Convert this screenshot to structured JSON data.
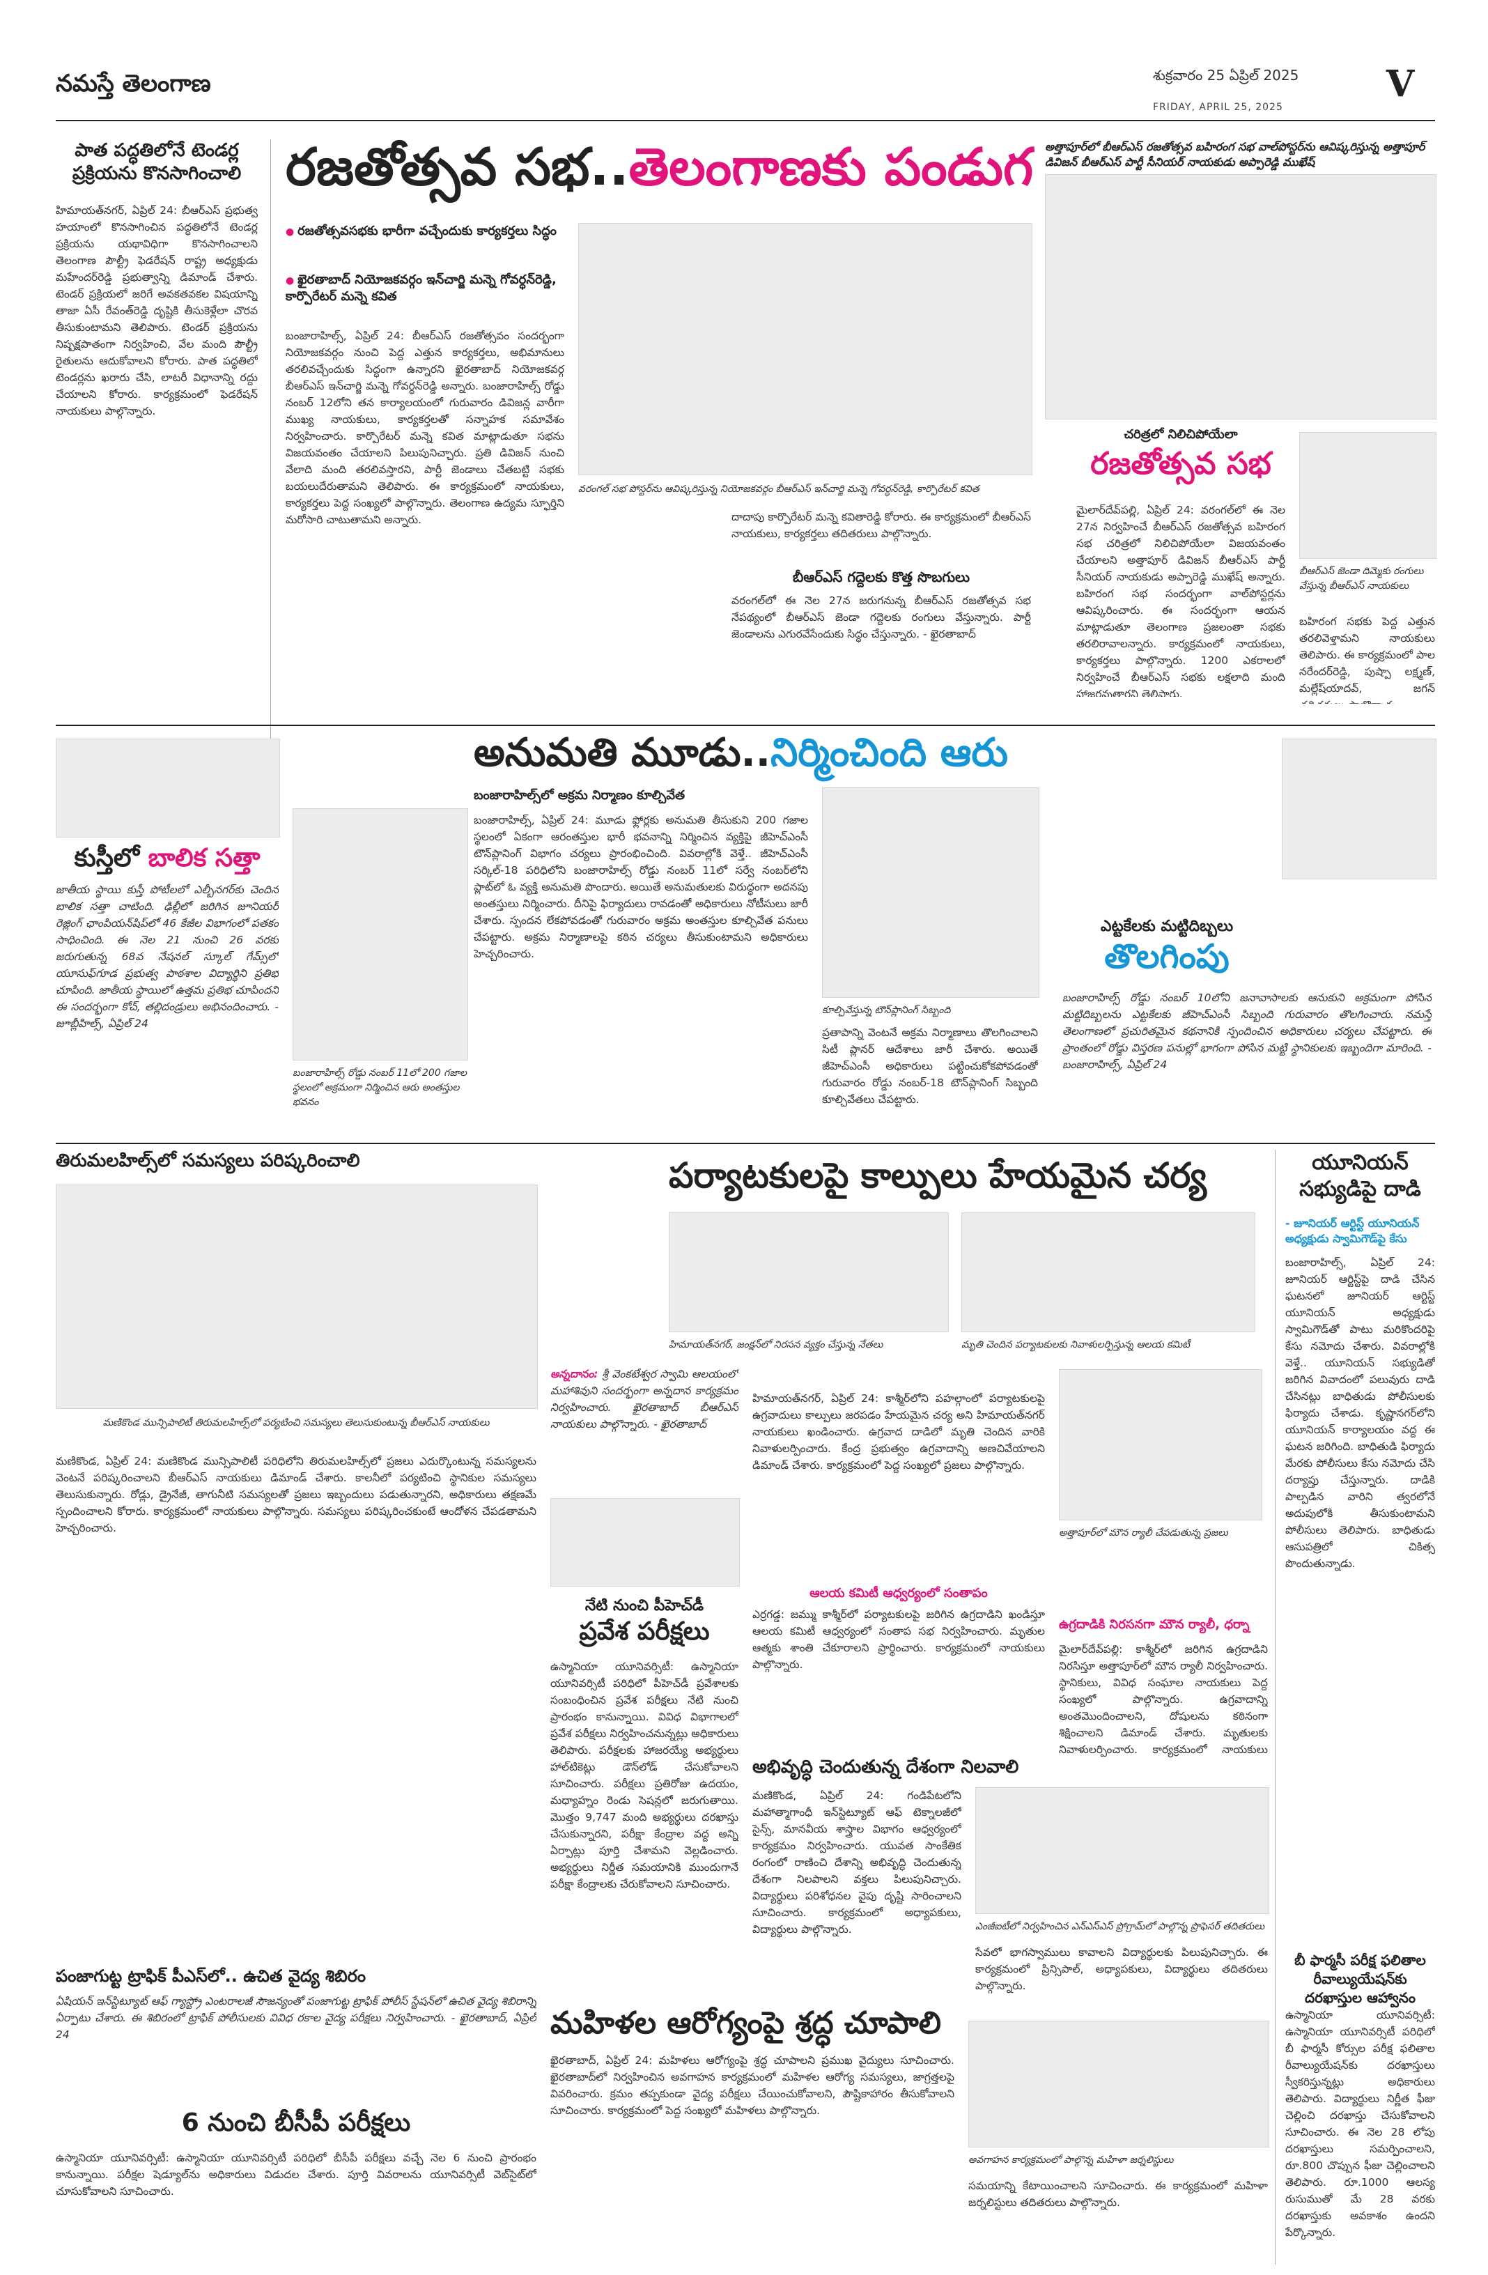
{
  "masthead": {
    "name": "నమస్తే తెలంగాణ",
    "page_letter": "V"
  },
  "dateline": {
    "telugu": "శుక్రవారం 25 ఏప్రిల్ 2025",
    "english": "FRIDAY, APRIL 25, 2025"
  },
  "stories": {
    "tender": {
      "heading": "పాత పద్ధతిలోనే టెండర్ల ప్రక్రియను కొనసాగించాలి",
      "body": "హిమాయత్‌నగర్, ఏప్రిల్ 24: బీఆర్‌ఎస్ ప్రభుత్వ హయాంలో కొనసాగించిన పద్ధతిలోనే టెండర్ల ప్రక్రియను యథావిధిగా కొనసాగించాలని తెలంగాణ పౌల్ట్రీ ఫెడరేషన్ రాష్ట్ర అధ్యక్షుడు మహేందర్‌రెడ్డి ప్రభుత్వాన్ని డిమాండ్ చేశారు. టెండర్ ప్రక్రియలో జరిగే అవకతవకల విషయాన్ని తాజా ఏసీ రేవంత్‌రెడ్డి దృష్టికి తీసుకెళ్లేలా చొరవ తీసుకుంటామని తెలిపారు. టెండర్ ప్రక్రియను నిష్పక్షపాతంగా నిర్వహించి, వేల మంది పౌల్ట్రీ రైతులను ఆదుకోవాలని కోరారు. పాత పద్ధతిలో టెండర్లను ఖరారు చేసి, లాటరీ విధానాన్ని రద్దు చేయాలని కోరారు. కార్యక్రమంలో ఫెడరేషన్ నాయకులు పాల్గొన్నారు."
    },
    "silver_jubilee": {
      "headline_part1": "రజతోత్సవ సభ..",
      "headline_part2": "తెలంగాణకు పండుగ",
      "bullet1": "రజతోత్సవసభకు భారీగా వచ్చేందుకు కార్యకర్తలు సిద్ధం",
      "bullet2": "ఖైరతాబాద్ నియోజకవర్గం ఇన్‌చార్జి మన్నె గోవర్ధన్‌రెడ్డి, కార్పొరేటర్ మన్నె కవిత",
      "body": "బంజారాహిల్స్, ఏప్రిల్ 24: బీఆర్‌ఎస్ రజతోత్సవం సందర్భంగా నియోజకవర్గం నుంచి పెద్ద ఎత్తున కార్యకర్తలు, అభిమానులు తరలివచ్చేందుకు సిద్ధంగా ఉన్నారని ఖైరతాబాద్ నియోజకవర్గ బీఆర్‌ఎస్ ఇన్‌చార్జి మన్నె గోవర్ధన్‌రెడ్డి అన్నారు. బంజారాహిల్స్ రోడ్డు నంబర్ 12లోని తన కార్యాలయంలో గురువారం డివిజన్ల వారీగా ముఖ్య నాయకులు, కార్యకర్తలతో సన్నాహక సమావేశం నిర్వహించారు. కార్పొరేటర్ మన్నె కవిత మాట్లాడుతూ సభను విజయవంతం చేయాలని పిలుపునిచ్చారు. ప్రతి డివిజన్ నుంచి వేలాది మంది తరలివస్తారని, పార్టీ జెండాలు చేతబట్టి సభకు బయలుదేరుతామని తెలిపారు. ఈ కార్యక్రమంలో నాయకులు, కార్యకర్తలు పెద్ద సంఖ్యలో పాల్గొన్నారు. తెలంగాణ ఉద్యమ స్ఫూర్తిని మరోసారి చాటుతామని అన్నారు.",
      "caption": "వరంగల్ సభ పోస్టర్‌ను ఆవిష్కరిస్తున్న నియోజకవర్గం బీఆర్‌ఎస్ ఇన్‌చార్జి మన్నె గోవర్ధన్‌రెడ్డి, కార్పొరేటర్ కవిత",
      "body2": "దాదాపు కార్పొరేటర్ మన్నె కవితారెడ్డి కోరారు. ఈ కార్యక్రమంలో బీఆర్‌ఎస్ నాయకులు, కార్యకర్తలు తదితరులు పాల్గొన్నారు.",
      "subhead": "బీఆర్‌ఎస్ గద్దెలకు కొత్త సొబగులు",
      "body3": "వరంగల్‌లో ఈ నెల 27న జరుగనున్న బీఆర్‌ఎస్ రజతోత్సవ సభ నేపథ్యంలో బీఆర్‌ఎస్ జెండా గద్దెలకు రంగులు వేస్తున్నారు. పార్టీ జెండాలను ఎగురవేసేందుకు సిద్ధం చేస్తున్నారు. - ఖైరతాబాద్"
    },
    "ambedkar_rally": {
      "kicker": "అత్తాపూర్‌లో బీఆర్‌ఎస్ రజతోత్సవ బహిరంగ సభ వాల్‌పోస్టర్‌ను ఆవిష్కరిస్తున్న అత్తాపూర్ డివిజన్ బీఆర్‌ఎస్ పార్టీ సీనియర్ నాయకుడు అప్పారెడ్డి ముఖేష్",
      "subkicker": "చరిత్రలో నిలిచిపోయేలా",
      "headline": "రజతోత్సవ సభ",
      "body": "మైలార్‌దేవ్‌పల్లి, ఏప్రిల్ 24: వరంగల్‌లో ఈ నెల 27న నిర్వహించే బీఆర్‌ఎస్ రజతోత్సవ బహిరంగ సభ చరిత్రలో నిలిచిపోయేలా విజయవంతం చేయాలని అత్తాపూర్ డివిజన్ బీఆర్‌ఎస్ పార్టీ సీనియర్ నాయకుడు అప్పారెడ్డి ముఖేష్ అన్నారు. బహిరంగ సభ సందర్భంగా వాల్‌పోస్టర్లను ఆవిష్కరించారు. ఈ సందర్భంగా ఆయన మాట్లాడుతూ తెలంగాణ ప్రజలంతా సభకు తరలిరావాలన్నారు. కార్యక్రమంలో నాయకులు, కార్యకర్తలు పాల్గొన్నారు. 1200 ఎకరాలలో నిర్వహించే బీఆర్‌ఎస్ సభకు లక్షలాది మంది హాజరవుతారని తెలిపారు.",
      "caption": "బీఆర్‌ఎస్ జెండా దిమ్మెకు రంగులు వేస్తున్న బీఆర్‌ఎస్ నాయకులు",
      "body2": "బహిరంగ సభకు పెద్ద ఎత్తున తరలివెళ్తామని నాయకులు తెలిపారు. ఈ కార్యక్రమంలో పాల నరేందర్‌రెడ్డి, పుష్పా లక్ష్మణ్, మల్లేష్‌యాదవ్, జగన్ తదితరులు పాల్గొన్నారు."
    },
    "permission": {
      "headline_part1": "అనుమతి మూడు..",
      "headline_part2": "నిర్మించింది ఆరు",
      "kicker": "బంజారాహిల్స్‌లో అక్రమ నిర్మాణం కూల్చివేత",
      "body": "బంజారాహిల్స్, ఏప్రిల్ 24: మూడు ఫ్లోర్లకు అనుమతి తీసుకుని 200 గజాల స్థలంలో ఏకంగా ఆరంతస్తుల భారీ భవనాన్ని నిర్మించిన వ్యక్తిపై జీహెచ్‌ఎంసీ టౌన్‌ప్లానింగ్ విభాగం చర్యలు ప్రారంభించింది. వివరాల్లోకి వెళ్తే.. జీహెచ్‌ఎంసీ సర్కిల్-18 పరిధిలోని బంజారాహిల్స్ రోడ్డు నంబర్ 11లో సర్వే నంబర్‌లోని ప్లాట్‌లో ఓ వ్యక్తి అనుమతి పొందారు. అయితే అనుమతులకు విరుద్ధంగా అదనపు అంతస్తులు నిర్మించారు. దీనిపై ఫిర్యాదులు రావడంతో అధికారులు నోటీసులు జారీ చేశారు. స్పందన లేకపోవడంతో గురువారం అక్రమ అంతస్తుల కూల్చివేత పనులు చేపట్టారు. అక్రమ నిర్మాణాలపై కఠిన చర్యలు తీసుకుంటామని అధికారులు హెచ్చరించారు.",
      "caption": "బంజారాహిల్స్ రోడ్డు నంబర్ 11లో 200 గజాల స్థలంలో అక్రమంగా నిర్మించిన ఆరు అంతస్తుల భవనం",
      "body2": "ప్రతాపాన్ని వెంటనే అక్రమ నిర్మాణాలు తొలగించాలని సిటీ ప్లానర్ ఆదేశాలు జారీ చేశారు. అయితే జీహెచ్‌ఎంసీ అధికారులు పట్టించుకోకపోవడంతో గురువారం రోడ్డు నంబర్-18 టౌన్‌ప్లానింగ్ సిబ్బంది కూల్చివేతలు చేపట్టారు.",
      "caption2": "కూల్చివేస్తున్న టౌన్‌ప్లానింగ్ సిబ్బంది"
    },
    "girl_power": {
      "headline_part1": "కుస్తీలో ",
      "headline_part2": "బాలిక సత్తా",
      "body": "జాతీయ స్థాయి కుస్తీ పోటీలలో ఎల్బీనగర్‌కు చెందిన బాలిక సత్తా చాటింది. ఢిల్లీలో జరిగిన జూనియర్ రెజ్లింగ్ ఛాంపియన్‌షిప్‌లో 46 కేజీల విభాగంలో పతకం సాధించింది. ఈ నెల 21 నుంచి 26 వరకు జరుగుతున్న 68వ నేషనల్ స్కూల్ గేమ్స్‌లో యూసుఫ్‌గూడ ప్రభుత్వ పాఠశాల విద్యార్థిని ప్రతిభ చూపింది. జాతీయ స్థాయిలో ఉత్తమ ప్రతిభ చూపిందని ఈ సందర్భంగా కోచ్, తల్లిదండ్రులు అభినందించారు. - జూబ్లీహిల్స్, ఏప్రిల్ 24"
    },
    "pubs": {
      "kicker": "ఎట్టకేలకు మట్టిదిబ్బలు",
      "headline": "తొలగింపు",
      "body": "బంజారాహిల్స్ రోడ్డు నంబర్ 10లోని జనావాసాలకు ఆనుకుని అక్రమంగా పోసిన మట్టిదిబ్బలను ఎట్టకేలకు జీహెచ్‌ఎంసీ సిబ్బంది గురువారం తొలగించారు. నమస్తే తెలంగాణలో ప్రచురితమైన కథనానికి స్పందించిన అధికారులు చర్యలు చేపట్టారు. ఈ ప్రాంతంలో రోడ్డు విస్తరణ పనుల్లో భాగంగా పోసిన మట్టి స్థానికులకు ఇబ్బందిగా మారింది. - బంజారాహిల్స్, ఏప్రిల్ 24"
    },
    "tirumalahills": {
      "headline": "తిరుమలహిల్స్‌లో సమస్యలు పరిష్కరించాలి",
      "caption": "మణికొండ మున్సిపాలిటీ తిరుమలహిల్స్‌లో పర్యటించి సమస్యలు తెలుసుకుంటున్న బీఆర్‌ఎస్ నాయకులు",
      "body": "మణికొండ, ఏప్రిల్ 24: మణికొండ మున్సిపాలిటీ పరిధిలోని తిరుమలహిల్స్‌లో ప్రజలు ఎదుర్కొంటున్న సమస్యలను వెంటనే పరిష్కరించాలని బీఆర్‌ఎస్ నాయకులు డిమాండ్ చేశారు. కాలనీలో పర్యటించి స్థానికుల సమస్యలు తెలుసుకున్నారు. రోడ్లు, డ్రైనేజీ, తాగునీటి సమస్యలతో ప్రజలు ఇబ్బందులు పడుతున్నారని, అధికారులు తక్షణమే స్పందించాలని కోరారు. కార్యక్రమంలో నాయకులు పాల్గొన్నారు. సమస్యలు పరిష్కరించకుంటే ఆందోళన చేపడతామని హెచ్చరించారు."
    },
    "tourists": {
      "headline": "పర్యాటకులపై కాల్పులు హేయమైన చర్య",
      "kicker": "హిమాయత్‌నగర్, జంక్షన్‌లో నిరసన వ్యక్తం చేస్తున్న నేతలు",
      "caption": "మృతి చెందిన పర్యాటకులకు నివాళులర్పిస్తున్న ఆలయ కమిటీ",
      "body": "హిమాయత్‌నగర్, ఏప్రిల్ 24: కాశ్మీర్‌లోని పహల్గాంలో పర్యాటకులపై ఉగ్రవాదులు కాల్పులు జరపడం హేయమైన చర్య అని హిమాయత్‌నగర్ నాయకులు ఖండించారు. ఉగ్రవాద దాడిలో మృతి చెందిన వారికి నివాళులర్పించారు. కేంద్ర ప్రభుత్వం ఉగ్రవాదాన్ని అణచివేయాలని డిమాండ్ చేశారు. కార్యక్రమంలో పెద్ద సంఖ్యలో ప్రజలు పాల్గొన్నారు.",
      "subhead": "ఆలయ కమిటీ ఆధ్వర్యంలో సంతాపం",
      "body2": "ఎర్రగడ్డ: జమ్ము కాశ్మీర్‌లో పర్యాటకులపై జరిగిన ఉగ్రదాడిని ఖండిస్తూ ఆలయ కమిటీ ఆధ్వర్యంలో సంతాప సభ నిర్వహించారు. మృతుల ఆత్మకు శాంతి చేకూరాలని ప్రార్థించారు. కార్యక్రమంలో నాయకులు పాల్గొన్నారు."
    },
    "annadanam": {
      "lead": "అన్నదానం:",
      "text": "శ్రీ వెంకటేశ్వర స్వామి ఆలయంలో మహాశివుని సందర్భంగా అన్నదాన కార్యక్రమం నిర్వహించారు. ఖైరతాబాద్ బీఆర్‌ఎస్ నాయకులు పాల్గొన్నారు. - ఖైరతాబాద్"
    },
    "phd": {
      "kicker": "నేటి నుంచి పీహెచ్‌డీ",
      "headline": "ప్రవేశ పరీక్షలు",
      "body": "ఉస్మానియా యూనివర్సిటీ: ఉస్మానియా యూనివర్సిటీ పరిధిలో పీహెచ్‌డీ ప్రవేశాలకు సంబంధించిన ప్రవేశ పరీక్షలు నేటి నుంచి ప్రారంభం కానున్నాయి. వివిధ విభాగాలలో ప్రవేశ పరీక్షలు నిర్వహించనున్నట్లు అధికారులు తెలిపారు. పరీక్షలకు హాజరయ్యే అభ్యర్థులు హాల్‌టికెట్లు డౌన్‌లోడ్ చేసుకోవాలని సూచించారు. పరీక్షలు ప్రతిరోజు ఉదయం, మధ్యాహ్నం రెండు సెషన్లలో జరుగుతాయి. మొత్తం 9,747 మంది అభ్యర్థులు దరఖాస్తు చేసుకున్నారని, పరీక్షా కేంద్రాల వద్ద అన్ని ఏర్పాట్లు పూర్తి చేశామని వెల్లడించారు. అభ్యర్థులు నిర్ణీత సమయానికి ముందుగానే పరీక్షా కేంద్రాలకు చేరుకోవాలని సూచించారు."
    },
    "silent_rally": {
      "kicker": "అత్తాపూర్‌లో మౌన ర్యాలీ చేపడుతున్న ప్రజలు",
      "headline": "ఉగ్రదాడికి నిరసనగా మౌన ర్యాలీ, ధర్నా",
      "body": "మైలార్‌దేవ్‌పల్లి: కాశ్మీర్‌లో జరిగిన ఉగ్రదాడిని నిరసిస్తూ అత్తాపూర్‌లో మౌన ర్యాలీ నిర్వహించారు. స్థానికులు, వివిధ సంఘాల నాయకులు పెద్ద సంఖ్యలో పాల్గొన్నారు. ఉగ్రవాదాన్ని అంతమొందించాలని, దోషులను కఠినంగా శిక్షించాలని డిమాండ్ చేశారు. మృతులకు నివాళులర్పించారు. కార్యక్రమంలో నాయకులు పాల్గొన్నారు."
    },
    "nilavali": {
      "headline": "అభివృద్ధి చెందుతున్న దేశంగా నిలవాలి",
      "body": "మణికొండ, ఏప్రిల్ 24: గండిపేటలోని మహాత్మాగాంధీ ఇన్‌స్టిట్యూట్ ఆఫ్ టెక్నాలజీలో సైన్స్, మానవీయ శాస్త్రాల విభాగం ఆధ్వర్యంలో కార్యక్రమం నిర్వహించారు. యువత సాంకేతిక రంగంలో రాణించి దేశాన్ని అభివృద్ధి చెందుతున్న దేశంగా నిలపాలని వక్తలు పిలుపునిచ్చారు. విద్యార్థులు పరిశోధనల వైపు దృష్టి సారించాలని సూచించారు. కార్యక్రమంలో అధ్యాపకులు, విద్యార్థులు పాల్గొన్నారు.",
      "caption": "ఎంజీఐటీలో నిర్వహించిన ఎన్‌ఎస్‌ఎస్ ప్రోగ్రామ్‌లో పాల్గొన్న ప్రొఫెసర్ తదితరులు",
      "body2": "సేవలో భాగస్వాములు కావాలని విద్యార్థులకు పిలుపునిచ్చారు. ఈ కార్యక్రమంలో ప్రిన్సిపాల్, అధ్యాపకులు, విద్యార్థులు తదితరులు పాల్గొన్నారు."
    },
    "union": {
      "headline": "యూనియన్ సభ్యుడిపై దాడి",
      "kicker": "- జూనియర్ ఆర్టిస్ట్ యూనియన్ అధ్యక్షుడు స్వామిగౌడ్‌పై కేసు",
      "body": "బంజారాహిల్స్, ఏప్రిల్ 24: జూనియర్ ఆర్టిస్ట్‌పై దాడి చేసిన ఘటనలో జూనియర్ ఆర్టిస్ట్ యూనియన్ అధ్యక్షుడు స్వామిగౌడ్‌తో పాటు మరికొందరిపై కేసు నమోదు చేశారు. వివరాల్లోకి వెళ్తే.. యూనియన్ సభ్యుడితో జరిగిన వివాదంలో పలువురు దాడి చేసినట్లు బాధితుడు పోలీసులకు ఫిర్యాదు చేశాడు. కృష్ణానగర్‌లోని యూనియన్ కార్యాలయం వద్ద ఈ ఘటన జరిగింది. బాధితుడి ఫిర్యాదు మేరకు పోలీసులు కేసు నమోదు చేసి దర్యాప్తు చేస్తున్నారు. దాడికి పాల్పడిన వారిని త్వరలోనే అదుపులోకి తీసుకుంటామని పోలీసులు తెలిపారు. బాధితుడు ఆసుపత్రిలో చికిత్స పొందుతున్నాడు."
    },
    "bpharmacy": {
      "headline": "బీ ఫార్మసీ పరీక్ష ఫలితాల రీవాల్యుయేషన్‌కు దరఖాస్తుల ఆహ్వానం",
      "body": "ఉస్మానియా యూనివర్సిటీ: ఉస్మానియా యూనివర్సిటీ పరిధిలో బీ ఫార్మసీ కోర్సుల పరీక్ష ఫలితాల రీవాల్యుయేషన్‌కు దరఖాస్తులు స్వీకరిస్తున్నట్లు అధికారులు తెలిపారు. విద్యార్థులు నిర్ణీత ఫీజు చెల్లించి దరఖాస్తు చేసుకోవాలని సూచించారు. ఈ నెల 28 లోపు దరఖాస్తులు సమర్పించాలని, రూ.800 చొప్పున ఫీజు చెల్లించాలని తెలిపారు. రూ.1000 ఆలస్య రుసుముతో మే 28 వరకు దరఖాస్తుకు అవకాశం ఉందని పేర్కొన్నారు."
    },
    "panjagutta": {
      "headline": "పంజాగుట్ట ట్రాఫిక్ పీఎస్‌లో.. ఉచిత వైద్య శిబిరం",
      "body": "ఏషియన్ ఇన్‌స్టిట్యూట్ ఆఫ్ గ్యాస్ట్రో ఎంటరాలజీ సౌజన్యంతో పంజాగుట్ట ట్రాఫిక్ పోలీస్ స్టేషన్‌లో ఉచిత వైద్య శిబిరాన్ని ఏర్పాటు చేశారు. ఈ శిబిరంలో ట్రాఫిక్ పోలీసులకు వివిధ రకాల వైద్య పరీక్షలు నిర్వహించారు. - ఖైరతాబాద్, ఏప్రిల్ 24"
    },
    "bcp": {
      "headline": "6 నుంచి బీసీపీ పరీక్షలు",
      "body": "ఉస్మానియా యూనివర్సిటీ: ఉస్మానియా యూనివర్సిటీ పరిధిలో బీసీపీ పరీక్షలు వచ్చే నెల 6 నుంచి ప్రారంభం కానున్నాయి. పరీక్షల షెడ్యూల్‌ను అధికారులు విడుదల చేశారు. పూర్తి వివరాలను యూనివర్సిటీ వెబ్‌సైట్‌లో చూసుకోవాలని సూచించారు."
    },
    "women_health": {
      "headline": "మహిళల ఆరోగ్యంపై శ్రద్ధ చూపాలి",
      "body": "ఖైరతాబాద్, ఏప్రిల్ 24: మహిళలు ఆరోగ్యంపై శ్రద్ధ చూపాలని ప్రముఖ వైద్యులు సూచించారు. ఖైరతాబాద్‌లో నిర్వహించిన అవగాహన కార్యక్రమంలో మహిళల ఆరోగ్య సమస్యలు, జాగ్రత్తలపై వివరించారు. క్రమం తప్పకుండా వైద్య పరీక్షలు చేయించుకోవాలని, పౌష్టికాహారం తీసుకోవాలని సూచించారు. కార్యక్రమంలో పెద్ద సంఖ్యలో మహిళలు పాల్గొన్నారు.",
      "caption": "అవగాహన కార్యక్రమంలో పాల్గొన్న మహిళా జర్నలిస్టులు",
      "body2": "సమయాన్ని కేటాయించాలని సూచించారు. ఈ కార్యక్రమంలో మహిళా జర్నలిస్టులు తదితరులు పాల్గొన్నారు."
    }
  }
}
